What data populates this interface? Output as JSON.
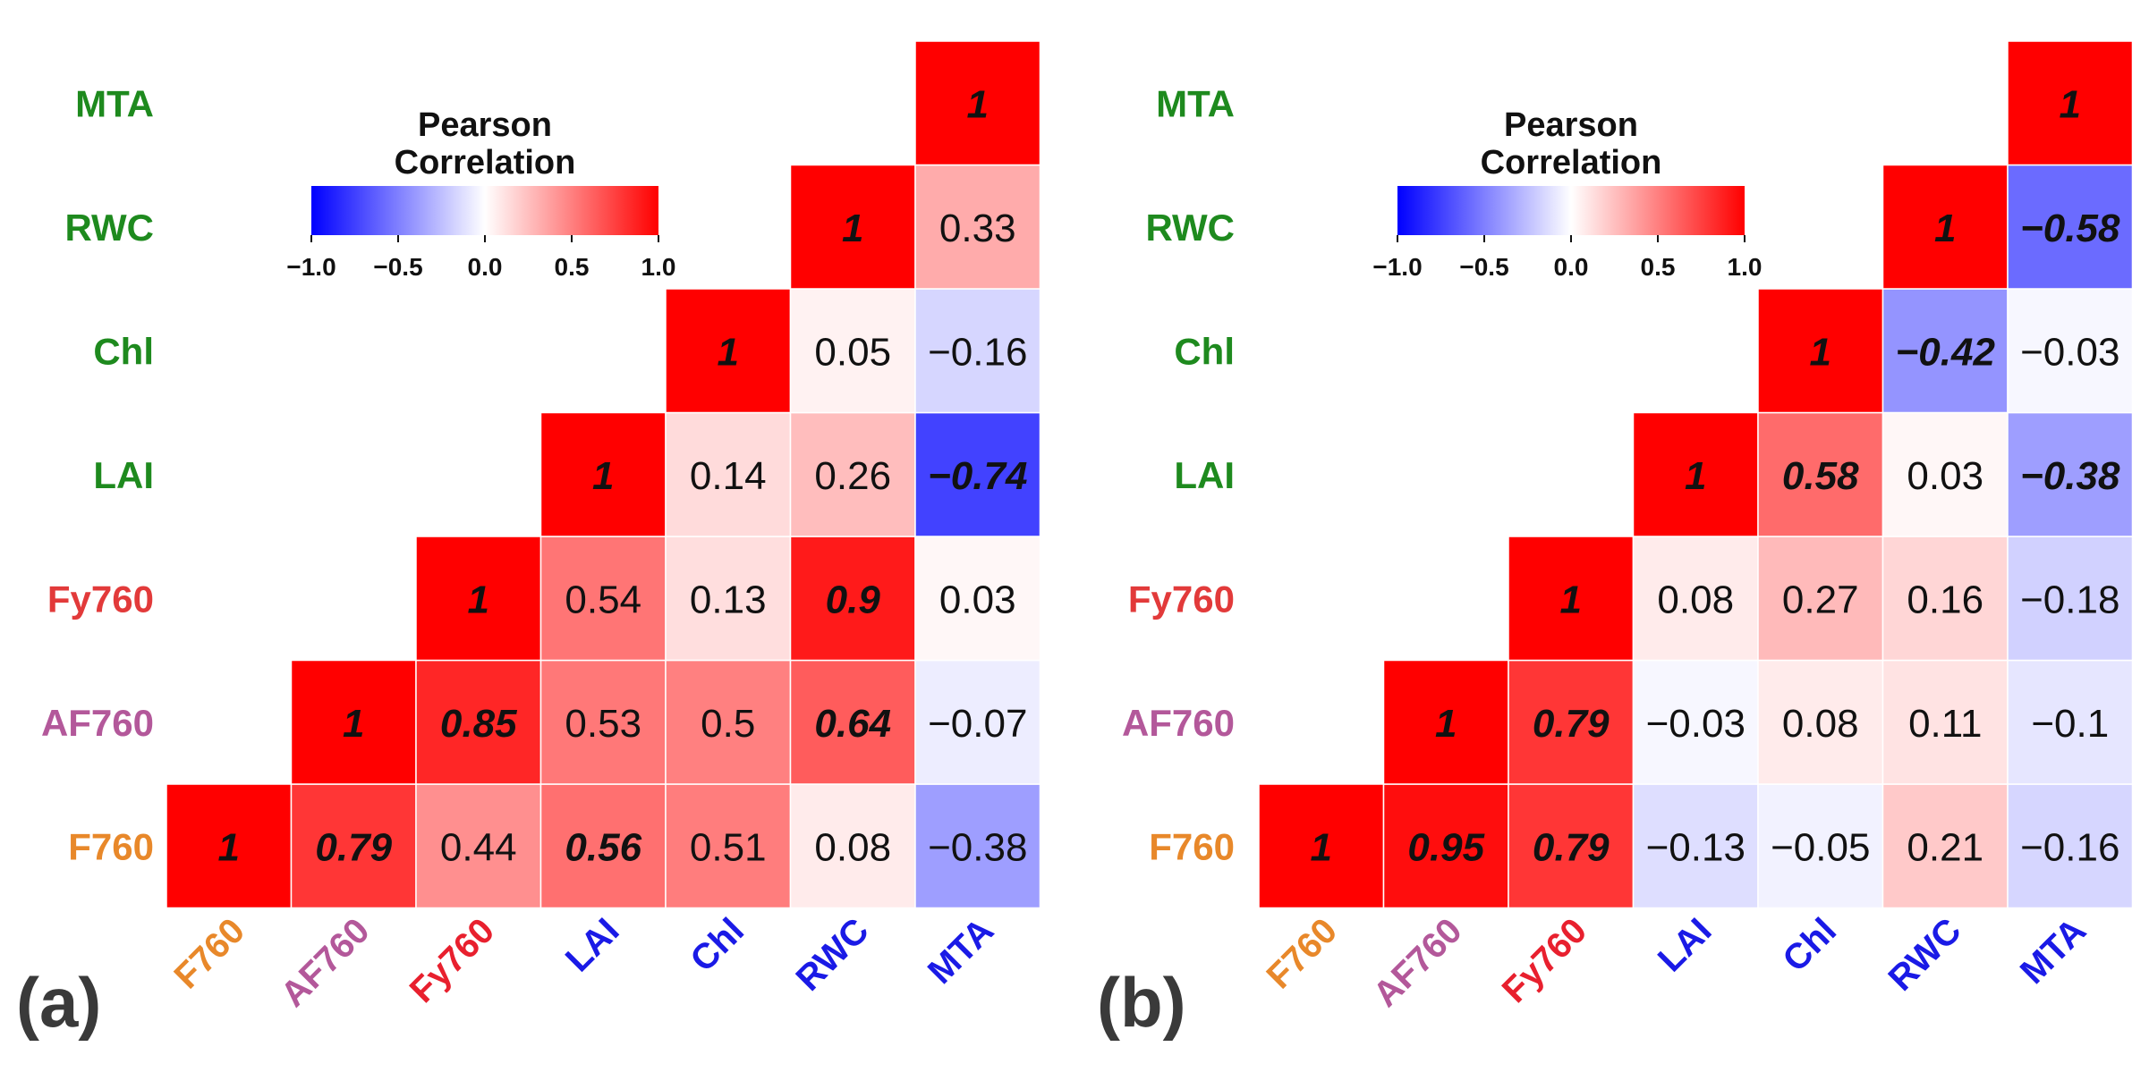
{
  "chart_data": [
    {
      "type": "heatmap",
      "panel_label": "(a)",
      "variables": [
        "F760",
        "AF760",
        "Fy760",
        "LAI",
        "Chl",
        "RWC",
        "MTA"
      ],
      "x_labels": [
        "F760",
        "AF760",
        "Fy760",
        "LAI",
        "Chl",
        "RWC",
        "MTA"
      ],
      "y_labels": [
        "MTA",
        "RWC",
        "Chl",
        "LAI",
        "Fy760",
        "AF760",
        "F760"
      ],
      "x_label_colors": [
        "#e8882a",
        "#b3589a",
        "#e8202e",
        "#1a1ae6",
        "#1a1ae6",
        "#1a1ae6",
        "#1a1ae6"
      ],
      "y_label_colors": [
        "#1e8a1e",
        "#1e8a1e",
        "#1e8a1e",
        "#1e8a1e",
        "#e23a3a",
        "#b3589a",
        "#e8882a"
      ],
      "cells": [
        {
          "x": "F760",
          "y": "F760",
          "value": 1,
          "label": "1",
          "significant": true
        },
        {
          "x": "AF760",
          "y": "F760",
          "value": 0.79,
          "label": "0.79",
          "significant": true
        },
        {
          "x": "Fy760",
          "y": "F760",
          "value": 0.44,
          "label": "0.44",
          "significant": false
        },
        {
          "x": "LAI",
          "y": "F760",
          "value": 0.56,
          "label": "0.56",
          "significant": true
        },
        {
          "x": "Chl",
          "y": "F760",
          "value": 0.51,
          "label": "0.51",
          "significant": false
        },
        {
          "x": "RWC",
          "y": "F760",
          "value": 0.08,
          "label": "0.08",
          "significant": false
        },
        {
          "x": "MTA",
          "y": "F760",
          "value": -0.38,
          "label": "−0.38",
          "significant": false
        },
        {
          "x": "AF760",
          "y": "AF760",
          "value": 1,
          "label": "1",
          "significant": true
        },
        {
          "x": "Fy760",
          "y": "AF760",
          "value": 0.85,
          "label": "0.85",
          "significant": true
        },
        {
          "x": "LAI",
          "y": "AF760",
          "value": 0.53,
          "label": "0.53",
          "significant": false
        },
        {
          "x": "Chl",
          "y": "AF760",
          "value": 0.5,
          "label": "0.5",
          "significant": false
        },
        {
          "x": "RWC",
          "y": "AF760",
          "value": 0.64,
          "label": "0.64",
          "significant": true
        },
        {
          "x": "MTA",
          "y": "AF760",
          "value": -0.07,
          "label": "−0.07",
          "significant": false
        },
        {
          "x": "Fy760",
          "y": "Fy760",
          "value": 1,
          "label": "1",
          "significant": true
        },
        {
          "x": "LAI",
          "y": "Fy760",
          "value": 0.54,
          "label": "0.54",
          "significant": false
        },
        {
          "x": "Chl",
          "y": "Fy760",
          "value": 0.13,
          "label": "0.13",
          "significant": false
        },
        {
          "x": "RWC",
          "y": "Fy760",
          "value": 0.9,
          "label": "0.9",
          "significant": true
        },
        {
          "x": "MTA",
          "y": "Fy760",
          "value": 0.03,
          "label": "0.03",
          "significant": false
        },
        {
          "x": "LAI",
          "y": "LAI",
          "value": 1,
          "label": "1",
          "significant": true
        },
        {
          "x": "Chl",
          "y": "LAI",
          "value": 0.14,
          "label": "0.14",
          "significant": false
        },
        {
          "x": "RWC",
          "y": "LAI",
          "value": 0.26,
          "label": "0.26",
          "significant": false
        },
        {
          "x": "MTA",
          "y": "LAI",
          "value": -0.74,
          "label": "−0.74",
          "significant": true
        },
        {
          "x": "Chl",
          "y": "Chl",
          "value": 1,
          "label": "1",
          "significant": true
        },
        {
          "x": "RWC",
          "y": "Chl",
          "value": 0.05,
          "label": "0.05",
          "significant": false
        },
        {
          "x": "MTA",
          "y": "Chl",
          "value": -0.16,
          "label": "−0.16",
          "significant": false
        },
        {
          "x": "RWC",
          "y": "RWC",
          "value": 1,
          "label": "1",
          "significant": true
        },
        {
          "x": "MTA",
          "y": "RWC",
          "value": 0.33,
          "label": "0.33",
          "significant": false
        },
        {
          "x": "MTA",
          "y": "MTA",
          "value": 1,
          "label": "1",
          "significant": true
        }
      ],
      "colorbar": {
        "title_line1": "Pearson",
        "title_line2": "Correlation",
        "range": [
          -1.0,
          1.0
        ],
        "ticks": [
          -1.0,
          -0.5,
          0.0,
          0.5,
          1.0
        ],
        "tick_labels": [
          "−1.0",
          "−0.5",
          "0.0",
          "0.5",
          "1.0"
        ],
        "colors": {
          "negative": "#0000ff",
          "zero": "#ffffff",
          "positive": "#ff0000"
        }
      }
    },
    {
      "type": "heatmap",
      "panel_label": "(b)",
      "variables": [
        "F760",
        "AF760",
        "Fy760",
        "LAI",
        "Chl",
        "RWC",
        "MTA"
      ],
      "x_labels": [
        "F760",
        "AF760",
        "Fy760",
        "LAI",
        "Chl",
        "RWC",
        "MTA"
      ],
      "y_labels": [
        "MTA",
        "RWC",
        "Chl",
        "LAI",
        "Fy760",
        "AF760",
        "F760"
      ],
      "x_label_colors": [
        "#e8882a",
        "#b3589a",
        "#e8202e",
        "#1a1ae6",
        "#1a1ae6",
        "#1a1ae6",
        "#1a1ae6"
      ],
      "y_label_colors": [
        "#1e8a1e",
        "#1e8a1e",
        "#1e8a1e",
        "#1e8a1e",
        "#e23a3a",
        "#b3589a",
        "#e8882a"
      ],
      "cells": [
        {
          "x": "F760",
          "y": "F760",
          "value": 1,
          "label": "1",
          "significant": true
        },
        {
          "x": "AF760",
          "y": "F760",
          "value": 0.95,
          "label": "0.95",
          "significant": true
        },
        {
          "x": "Fy760",
          "y": "F760",
          "value": 0.79,
          "label": "0.79",
          "significant": true
        },
        {
          "x": "LAI",
          "y": "F760",
          "value": -0.13,
          "label": "−0.13",
          "significant": false
        },
        {
          "x": "Chl",
          "y": "F760",
          "value": -0.05,
          "label": "−0.05",
          "significant": false
        },
        {
          "x": "RWC",
          "y": "F760",
          "value": 0.21,
          "label": "0.21",
          "significant": false
        },
        {
          "x": "MTA",
          "y": "F760",
          "value": -0.16,
          "label": "−0.16",
          "significant": false
        },
        {
          "x": "AF760",
          "y": "AF760",
          "value": 1,
          "label": "1",
          "significant": true
        },
        {
          "x": "Fy760",
          "y": "AF760",
          "value": 0.79,
          "label": "0.79",
          "significant": true
        },
        {
          "x": "LAI",
          "y": "AF760",
          "value": -0.03,
          "label": "−0.03",
          "significant": false
        },
        {
          "x": "Chl",
          "y": "AF760",
          "value": 0.08,
          "label": "0.08",
          "significant": false
        },
        {
          "x": "RWC",
          "y": "AF760",
          "value": 0.11,
          "label": "0.11",
          "significant": false
        },
        {
          "x": "MTA",
          "y": "AF760",
          "value": -0.1,
          "label": "−0.1",
          "significant": false
        },
        {
          "x": "Fy760",
          "y": "Fy760",
          "value": 1,
          "label": "1",
          "significant": true
        },
        {
          "x": "LAI",
          "y": "Fy760",
          "value": 0.08,
          "label": "0.08",
          "significant": false
        },
        {
          "x": "Chl",
          "y": "Fy760",
          "value": 0.27,
          "label": "0.27",
          "significant": false
        },
        {
          "x": "RWC",
          "y": "Fy760",
          "value": 0.16,
          "label": "0.16",
          "significant": false
        },
        {
          "x": "MTA",
          "y": "Fy760",
          "value": -0.18,
          "label": "−0.18",
          "significant": false
        },
        {
          "x": "LAI",
          "y": "LAI",
          "value": 1,
          "label": "1",
          "significant": true
        },
        {
          "x": "Chl",
          "y": "LAI",
          "value": 0.58,
          "label": "0.58",
          "significant": true
        },
        {
          "x": "RWC",
          "y": "LAI",
          "value": 0.03,
          "label": "0.03",
          "significant": false
        },
        {
          "x": "MTA",
          "y": "LAI",
          "value": -0.38,
          "label": "−0.38",
          "significant": true
        },
        {
          "x": "Chl",
          "y": "Chl",
          "value": 1,
          "label": "1",
          "significant": true
        },
        {
          "x": "RWC",
          "y": "Chl",
          "value": -0.42,
          "label": "−0.42",
          "significant": true
        },
        {
          "x": "MTA",
          "y": "Chl",
          "value": -0.03,
          "label": "−0.03",
          "significant": false
        },
        {
          "x": "RWC",
          "y": "RWC",
          "value": 1,
          "label": "1",
          "significant": true
        },
        {
          "x": "MTA",
          "y": "RWC",
          "value": -0.58,
          "label": "−0.58",
          "significant": true
        },
        {
          "x": "MTA",
          "y": "MTA",
          "value": 1,
          "label": "1",
          "significant": true
        }
      ],
      "colorbar": {
        "title_line1": "Pearson",
        "title_line2": "Correlation",
        "range": [
          -1.0,
          1.0
        ],
        "ticks": [
          -1.0,
          -0.5,
          0.0,
          0.5,
          1.0
        ],
        "tick_labels": [
          "−1.0",
          "−0.5",
          "0.0",
          "0.5",
          "1.0"
        ],
        "colors": {
          "negative": "#0000ff",
          "zero": "#ffffff",
          "positive": "#ff0000"
        }
      }
    }
  ]
}
